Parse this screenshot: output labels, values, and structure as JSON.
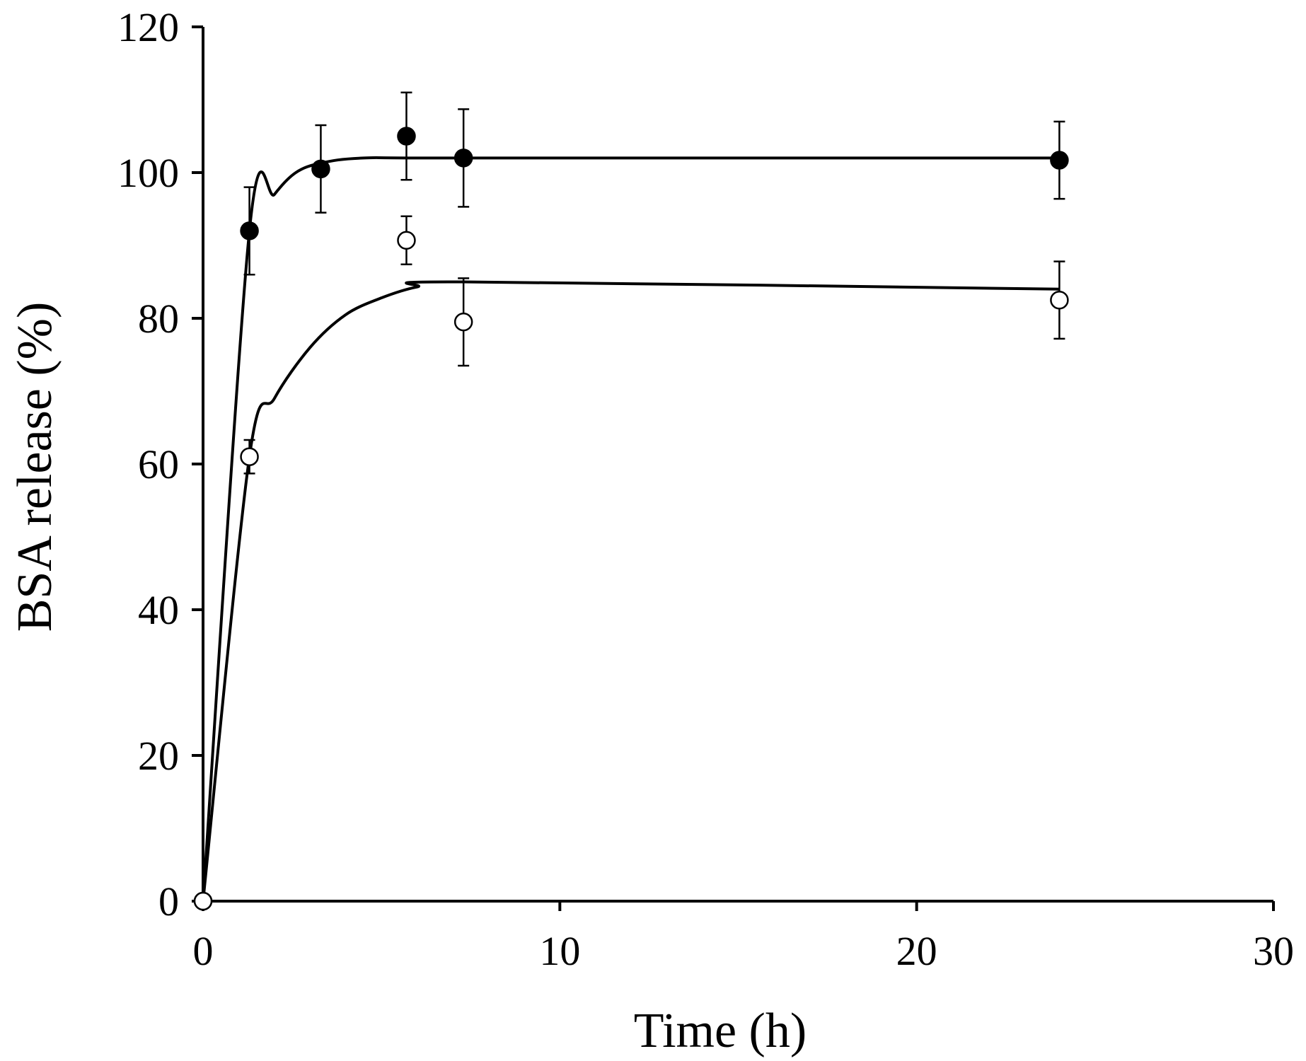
{
  "chart_data": {
    "type": "scatter",
    "title": "",
    "xlabel": "Time (h)",
    "ylabel": "BSA release (%)",
    "xlim": [
      0,
      30
    ],
    "ylim": [
      0,
      120
    ],
    "xticks": [
      0,
      10,
      20,
      30
    ],
    "yticks": [
      0,
      20,
      40,
      60,
      80,
      100,
      120
    ],
    "xtick_labels": [
      "0",
      "10",
      "20",
      "30"
    ],
    "ytick_labels": [
      "0",
      "20",
      "40",
      "60",
      "80",
      "100",
      "120"
    ],
    "grid": false,
    "series": [
      {
        "name": "filled",
        "marker": "filled-circle",
        "color": "#000000",
        "x": [
          0,
          1.3,
          3.3,
          5.7,
          7.3,
          24.0
        ],
        "y": [
          0,
          92,
          100.5,
          105,
          102,
          101.7
        ],
        "error": [
          0,
          6,
          6,
          6,
          6.7,
          5.3
        ],
        "fit": {
          "x": [
            0,
            1.3,
            2.0,
            2.6,
            3.3,
            4.5,
            7.3,
            24.0
          ],
          "y": [
            0,
            92,
            97,
            100,
            101.3,
            102,
            102,
            102
          ]
        }
      },
      {
        "name": "open",
        "marker": "open-circle",
        "color": "#000000",
        "x": [
          0,
          1.3,
          5.7,
          7.3,
          24.0
        ],
        "y": [
          0,
          61,
          90.7,
          79.5,
          82.5
        ],
        "error": [
          0,
          2.3,
          3.3,
          6,
          5.3
        ],
        "fit": {
          "x": [
            0,
            1.3,
            2.0,
            3.0,
            4.0,
            5.0,
            6.0,
            7.3,
            24.0
          ],
          "y": [
            0,
            61,
            69,
            76,
            80.5,
            82.8,
            84.3,
            85,
            84
          ]
        }
      }
    ]
  }
}
